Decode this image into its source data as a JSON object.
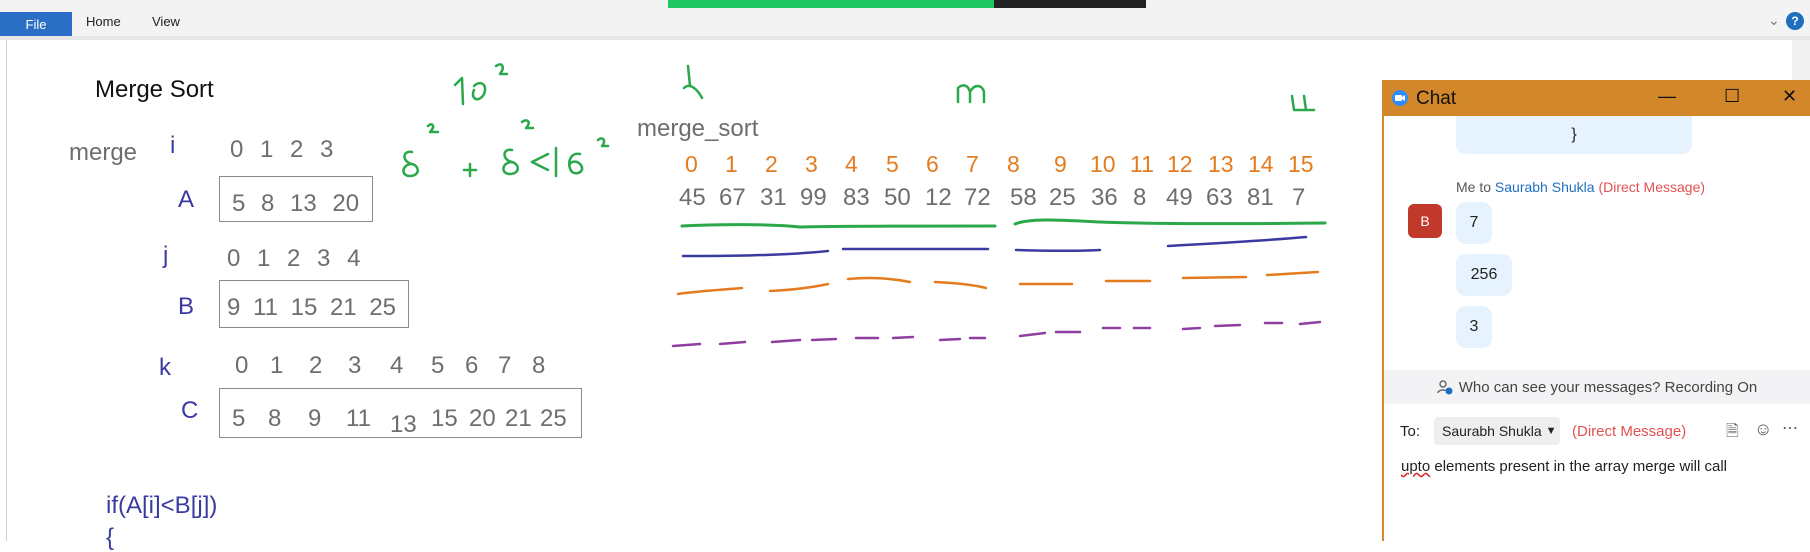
{
  "ribbon": {
    "tabs": [
      "File",
      "Home",
      "View"
    ],
    "help_label": "?"
  },
  "notes": {
    "title": "Merge Sort",
    "label_merge": "merge",
    "label_i": "i",
    "i_indices": "0 1 2 3",
    "label_A": "A",
    "A_values": "5 8 13 20",
    "label_j": "j",
    "j_indices": "0 1 2 3 4",
    "label_B": "B",
    "B_values": "9 11 15 21 25",
    "label_k": "k",
    "k_indices": [
      "0",
      "1",
      "2",
      "3",
      "4",
      "5",
      "6",
      "7",
      "8"
    ],
    "label_C": "C",
    "C_values": [
      "5",
      "8",
      "9",
      "11",
      "13",
      "15",
      "20",
      "21",
      "25"
    ],
    "code_line1": "if(A[i]<B[j])",
    "code_line2": "{",
    "merge_sort_label": "merge_sort",
    "array_indices": [
      "0",
      "1",
      "2",
      "3",
      "4",
      "5",
      "6",
      "7",
      "8",
      "9",
      "10",
      "11",
      "12",
      "13",
      "14",
      "15"
    ],
    "array_values": [
      "45",
      "67",
      "31",
      "99",
      "83",
      "50",
      "12",
      "72",
      "58",
      "25",
      "36",
      "8",
      "49",
      "63",
      "81",
      "7"
    ],
    "ink_16sq": "16",
    "ink_exp": "2",
    "ink_formula": "8 + 8 < 16",
    "ink_l": "l",
    "ink_m": "m",
    "ink_u": "u"
  },
  "chat": {
    "title": "Chat",
    "prev_bubble_text": "}",
    "sender_prefix": "Me to ",
    "recipient": "Saurabh Shukla",
    "dm_tag": "(Direct Message)",
    "avatar_letter": "B",
    "messages": [
      "7",
      "256",
      "3"
    ],
    "notice": "Who can see your messages? Recording On",
    "to_label": "To:",
    "to_value": "Saurabh Shukla",
    "to_dm": "(Direct Message)",
    "draft_word1": "upto",
    "draft_rest": " elements present in the array merge will call",
    "colors": {
      "title_bar": "#d2882a",
      "bubble": "#e6f2fd",
      "avatar": "#c0392b",
      "dm": "#e05252",
      "link": "#1f6fc1"
    }
  }
}
